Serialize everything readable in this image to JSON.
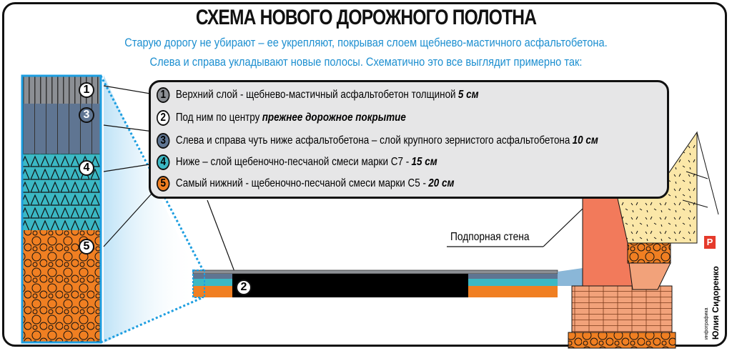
{
  "title": "СХЕМА НОВОГО ДОРОЖНОГО ПОЛОТНА",
  "subtitle": [
    "Старую дорогу не убирают – ее укрепляют, покрывая слоем щебнево-мастичного асфальтобетона.",
    "Слева и справа укладывают новые полосы. Схематично это все выглядит примерно так:"
  ],
  "legend": [
    {
      "num": "1",
      "text": "Верхний слой - щебнево-мастичный асфальтобетон толщиной",
      "bold": "5 см",
      "color": "#8c8f94"
    },
    {
      "num": "2",
      "text": "Под ним по центру",
      "bold": "прежнее дорожное покрытие",
      "color": "#ffffff"
    },
    {
      "num": "3",
      "text": "Слева и справа чуть ниже асфальтобетона – слой крупного зернистого асфальтобетона",
      "bold": "10 см",
      "color": "#5f7592"
    },
    {
      "num": "4",
      "text": "Ниже – слой щебеночно-песчаной смеси марки С7 -",
      "bold": "15 см",
      "color": "#3bb8c4"
    },
    {
      "num": "5",
      "text": "Самый нижний - щебеночно-песчаной смеси марки С5 -",
      "bold": "20 см",
      "color": "#f07f22"
    }
  ],
  "wall_label": "Подпорная стена",
  "credit": {
    "role": "инфографика",
    "author": "Юлия Сидоренко",
    "logo": "Р"
  },
  "colors": {
    "accent": "#1d8fd0",
    "asphalt": "#8c8f94",
    "coarse": "#5f7592",
    "c7": "#3bb8c4",
    "c5": "#f07f22"
  }
}
